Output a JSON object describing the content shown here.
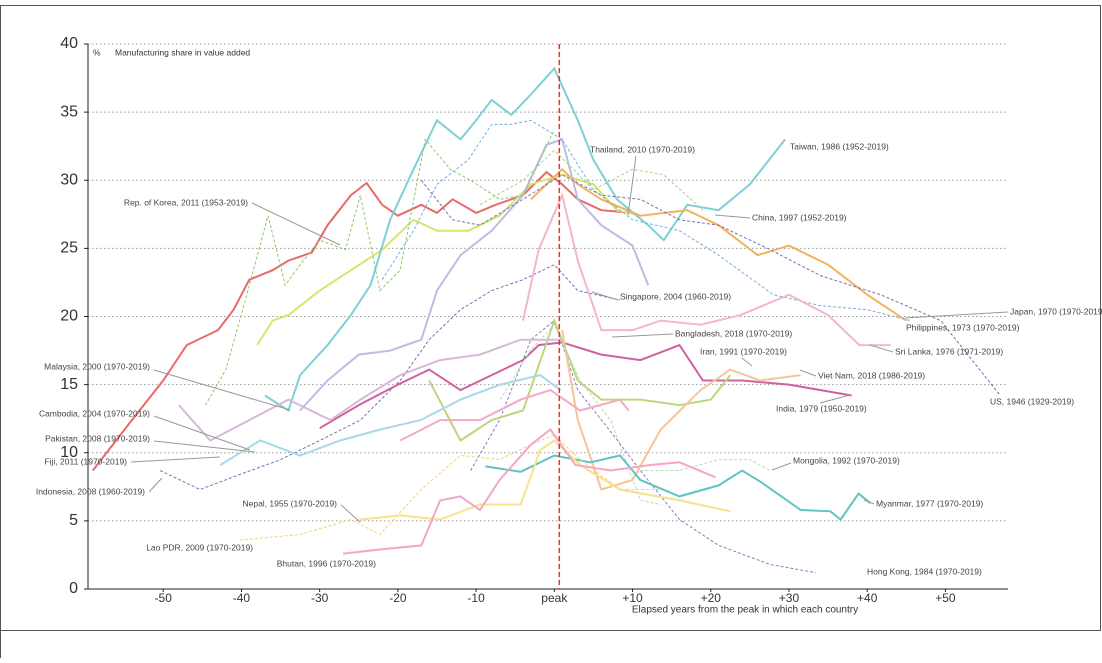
{
  "chart_data": {
    "type": "line",
    "y_unit": "%",
    "ylabel": "Manufacturing share in value added",
    "xlabel": "Elapsed years from the peak in which each country",
    "xlim": [
      -60,
      58
    ],
    "ylim": [
      0,
      40
    ],
    "xticks": [
      -50,
      -40,
      -30,
      -20,
      -10,
      {
        "value": 0,
        "label": "peak"
      },
      {
        "value": 10,
        "label": "+10"
      },
      {
        "value": 20,
        "label": "+20"
      },
      {
        "value": 30,
        "label": "+30"
      },
      {
        "value": 40,
        "label": "+40"
      },
      {
        "value": 50,
        "label": "+50"
      }
    ],
    "yticks": [
      0,
      5,
      10,
      15,
      20,
      25,
      30,
      35,
      40
    ],
    "grid": true,
    "peak_line": 0,
    "peak_line_color": "#e0302e",
    "series": [
      {
        "name": "Rep. of Korea, 2011 (1953-2019)",
        "color": "#e8696b",
        "dash": false,
        "x": [
          -59,
          -54,
          -50,
          -47,
          -43,
          -41,
          -39,
          -36,
          -34,
          -31,
          -29,
          -26,
          -24,
          -22,
          -20,
          -17,
          -15,
          -13,
          -10,
          -7.5,
          -4,
          -1,
          1,
          3,
          6,
          10
        ],
        "values": [
          8.7,
          12.4,
          15.3,
          17.9,
          19,
          20.5,
          22.7,
          23.4,
          24.1,
          24.7,
          26.7,
          28.9,
          29.8,
          28.2,
          27.4,
          28.2,
          27.6,
          28.6,
          27.6,
          28.2,
          28.9,
          30.6,
          29.7,
          28.6,
          27.8,
          27.6
        ]
      },
      {
        "name": "Thailand, 2010 (1970-2019)",
        "color": "#d6e56e",
        "dash": false,
        "x": [
          -38,
          -36,
          -34,
          -30,
          -26,
          -22,
          -18,
          -15,
          -11,
          -7,
          -3,
          1,
          5,
          8,
          11
        ],
        "values": [
          17.9,
          19.7,
          20.1,
          21.9,
          23.4,
          24.9,
          27.1,
          26.3,
          26.3,
          27.4,
          29.7,
          30.4,
          29.7,
          27.8,
          27.4
        ]
      },
      {
        "name": "Taiwan, 1986 (1952-2019)",
        "color": "#7fcfd6",
        "dash": false,
        "x": [
          -37,
          -34,
          -32.5,
          -29,
          -26,
          -23.5,
          -21,
          -18,
          -15,
          -12,
          -10,
          -8,
          -5.5,
          -3,
          0,
          3,
          5,
          8,
          12,
          14,
          17,
          21,
          25,
          29.5
        ],
        "values": [
          14.2,
          13.1,
          15.7,
          17.9,
          20.1,
          22.3,
          27.1,
          30.8,
          34.4,
          33,
          34.4,
          35.9,
          34.8,
          36.3,
          38.2,
          34.4,
          31.5,
          28.6,
          26.7,
          25.6,
          28.2,
          27.8,
          29.7,
          33
        ]
      },
      {
        "name": "Japan, 1970 (1970-2019)",
        "color": "#f2b35c",
        "dash": false,
        "x": [
          -3,
          1,
          3,
          6,
          11,
          17,
          21,
          26,
          30,
          35,
          40,
          45
        ],
        "values": [
          28.6,
          30.8,
          29.7,
          28.6,
          27.4,
          27.8,
          26.7,
          24.5,
          25.2,
          23.8,
          21.6,
          19.7
        ]
      },
      {
        "name": "Singapore, 2004 (1960-2019)",
        "color": "#b9bee2",
        "dash": false,
        "x": [
          -32.5,
          -29,
          -25,
          -21,
          -17,
          -15,
          -12,
          -8,
          -4,
          -1,
          1,
          3,
          6,
          10,
          12
        ],
        "values": [
          13.1,
          15.3,
          17.2,
          17.5,
          18.3,
          21.9,
          24.5,
          26.3,
          28.9,
          32.6,
          33,
          28.6,
          26.7,
          25.2,
          22.3
        ]
      },
      {
        "name": "Philippines, 1973 (1970-2019)",
        "color": "#7aaedc",
        "dash": true,
        "x": [
          -22,
          -18,
          -15,
          -11,
          -8,
          -5.5,
          -3,
          1,
          5,
          10,
          16,
          21,
          28,
          34,
          40,
          45.5
        ],
        "values": [
          22.7,
          26.3,
          29.7,
          31.5,
          34.1,
          34.1,
          34.4,
          33,
          29.3,
          27.1,
          26.3,
          24.5,
          21.6,
          20.8,
          20.5,
          19.7
        ]
      },
      {
        "name": "China, 1997 (1952-2019)",
        "color": "#a9d18e",
        "dash": true,
        "x": [
          -9.5,
          -4,
          0,
          5,
          10,
          14,
          19
        ],
        "values": [
          28.2,
          30,
          32.2,
          29.3,
          30.8,
          30.4,
          27.8
        ]
      },
      {
        "name": "Malaysia, 2000 (1970-2019)",
        "color": "#8dc86a",
        "dash": true,
        "x": [
          -44.6,
          -42,
          -39.5,
          -36.6,
          -34.4,
          -32.5,
          -30,
          -26.7,
          -24.8,
          -22.3,
          -19.7,
          -16.5,
          -13.3,
          -10.7,
          -7,
          -4,
          0
        ],
        "values": [
          13.5,
          16.1,
          21.2,
          27.4,
          22.3,
          23.8,
          25.6,
          24.9,
          28.9,
          21.9,
          23.4,
          33,
          30.8,
          30,
          28.6,
          28.9,
          33.7
        ]
      },
      {
        "name": "US, 1946 (1929-2019)",
        "color": "#7b6fb5",
        "dash": true,
        "x": [
          -17,
          -13,
          -9.5,
          -4,
          1,
          6,
          11,
          16,
          21,
          27.6,
          34,
          41.7,
          49.4,
          57
        ],
        "values": [
          30,
          27.1,
          26.7,
          28.6,
          30.4,
          28.9,
          28.6,
          27.1,
          26.7,
          24.9,
          23,
          21.6,
          19.7,
          14.2
        ]
      },
      {
        "name": "Indonesia, 2008 (1960-2019)",
        "color": "#7b6fb5",
        "dash": true,
        "x": [
          -50.4,
          -45.3,
          -40.2,
          -35,
          -30,
          -24.8,
          -19.7,
          -16,
          -12,
          -8,
          -4,
          0,
          3,
          8.4
        ],
        "values": [
          8.7,
          7.3,
          8.4,
          9.5,
          10.9,
          12.4,
          15.3,
          18.3,
          20.5,
          21.9,
          22.7,
          23.8,
          21.9,
          21.2
        ]
      },
      {
        "name": "Hong Kong, 1984 (1970-2019)",
        "color": "#8a7cc0",
        "dash": true,
        "x": [
          -10.7,
          -7,
          -3,
          0,
          3,
          7,
          11,
          16,
          21,
          27.6,
          33.4
        ],
        "values": [
          8.7,
          12.4,
          18.3,
          19.7,
          14.6,
          11.7,
          8.7,
          5.1,
          3.2,
          1.8,
          1.2
        ]
      },
      {
        "name": "Sri Lanka, 1976 (1971-2019)",
        "color": "#f4b6cc",
        "dash": false,
        "x": [
          -4,
          -2,
          1,
          3,
          6,
          10,
          13.6,
          18.7,
          23.8,
          30,
          35,
          39,
          43
        ],
        "values": [
          19.7,
          24.9,
          28.9,
          24.1,
          19,
          19,
          19.7,
          19.4,
          20.1,
          21.6,
          20.1,
          17.9,
          17.9
        ]
      },
      {
        "name": "Bangladesh, 2018 (1970-2019)",
        "color": "#d0609f",
        "dash": false,
        "x": [
          -30,
          -25,
          -20,
          -16,
          -12,
          -8,
          -4,
          -2,
          1,
          6,
          11,
          16,
          19,
          24,
          30,
          38
        ],
        "values": [
          11.8,
          13.5,
          15,
          16.1,
          14.6,
          15.7,
          16.8,
          17.9,
          18.1,
          17.2,
          16.8,
          17.9,
          15.3,
          15.3,
          15,
          14.2
        ]
      },
      {
        "name": "Iran, 1991 (1970-2019)",
        "color": "#bcd67d",
        "dash": false,
        "x": [
          -16,
          -12,
          -8,
          -4,
          0,
          3,
          6,
          11,
          16,
          20,
          22.5
        ],
        "values": [
          15.3,
          10.9,
          12.4,
          13.1,
          19.7,
          15.3,
          13.9,
          13.9,
          13.5,
          13.9,
          15.7
        ]
      },
      {
        "name": "Viet Nam, 2018 (1986-2019)",
        "color": "#f5c49c",
        "dash": false,
        "x": [
          1,
          3,
          6,
          10,
          13.6,
          18.7,
          22.5,
          26.3,
          31.5
        ],
        "values": [
          19,
          12.4,
          7.3,
          8,
          11.7,
          14.6,
          16.1,
          15.3,
          15.7
        ]
      },
      {
        "name": "India, 1979 (1950-2019)",
        "color": "#f2a9c6",
        "dash": false,
        "x": [
          -19.7,
          -14.6,
          -9.5,
          -4.3,
          -0.5,
          3.3,
          8.4,
          9.5
        ],
        "values": [
          10.9,
          12.4,
          12.4,
          13.9,
          14.6,
          13.1,
          13.9,
          13.1
        ]
      },
      {
        "name": "Fiji, 2011 (1970-2019)",
        "color": "#a8d8ea",
        "dash": false,
        "x": [
          -42.7,
          -37.6,
          -32.5,
          -27.4,
          -22.3,
          -17.1,
          -12,
          -6.9,
          -1.8,
          0.8
        ],
        "values": [
          9.1,
          10.9,
          9.8,
          10.9,
          11.7,
          12.4,
          13.9,
          15,
          15.7,
          14.6
        ]
      },
      {
        "name": "Pakistan, 2008 (1970-2019)",
        "color": "#d6b8d8",
        "dash": false,
        "x": [
          -48,
          -44,
          -39,
          -34,
          -28.6,
          -24.8,
          -19.7,
          -14.6,
          -9.5,
          -4.3,
          0.8
        ],
        "values": [
          13.5,
          10.9,
          12.4,
          13.9,
          12.4,
          13.9,
          15.7,
          16.8,
          17.2,
          18.3,
          18.3
        ]
      },
      {
        "name": "Cambodia, 2004 (1970-2019)",
        "color": "#b5dcb0",
        "dash": true,
        "x": [
          -6.9,
          -3.1,
          0,
          3.3,
          7.2,
          11,
          13.6
        ],
        "values": [
          13.9,
          17.5,
          19.4,
          15.3,
          12.4,
          6.5,
          6.2
        ]
      },
      {
        "name": "Mongolia, 1992 (1970-2019)",
        "color": "#b5dcb0",
        "dash": true,
        "x": [
          11,
          16,
          21,
          25,
          27.6
        ],
        "values": [
          8.7,
          8.7,
          9.5,
          9.5,
          8.7
        ]
      },
      {
        "name": "Myanmar, 1977 (1970-2019)",
        "color": "#5fc4c4",
        "dash": false,
        "x": [
          -8.8,
          -4.3,
          0,
          4.6,
          8.4,
          11,
          16,
          21,
          24,
          26.3,
          31.5,
          35.3,
          36.6,
          38.9,
          40.4
        ],
        "values": [
          9,
          8.6,
          9.8,
          9.3,
          9.8,
          8,
          6.8,
          7.6,
          8.7,
          7.9,
          5.8,
          5.7,
          5.1,
          7,
          6.3
        ]
      },
      {
        "name": "Nepal, 1955 (1970-2019)",
        "color": "#f5d36a",
        "dash": true,
        "x": [
          -40.2,
          -32.5,
          -26,
          -22.3,
          -17,
          -12,
          -7,
          -3,
          0,
          3.3,
          8.4,
          13.6
        ],
        "values": [
          3.6,
          4,
          5.1,
          4,
          7.3,
          9.8,
          9.5,
          10.6,
          11.3,
          9.5,
          7.3,
          7.3
        ]
      },
      {
        "name": "Lao PDR, 2009 (1970-2019)",
        "color": "#f9e08a",
        "dash": false,
        "x": [
          -24.8,
          -19.7,
          -14.6,
          -9.5,
          -4.3,
          -1.8,
          0,
          3.3,
          8.4,
          16,
          22.5
        ],
        "values": [
          5.1,
          5.4,
          5.1,
          6.2,
          6.2,
          10.2,
          10.9,
          9.1,
          7.3,
          6.5,
          5.7
        ]
      },
      {
        "name": "Bhutan, 1996 (1970-2019)",
        "color": "#f4a6c4",
        "dash": false,
        "x": [
          -27,
          -22.3,
          -17,
          -14.6,
          -12,
          -9.5,
          -7,
          -3,
          -0.5,
          2.7,
          7.2,
          12.3,
          16,
          20.6
        ],
        "values": [
          2.6,
          2.9,
          3.2,
          6.5,
          6.8,
          5.8,
          8,
          10.6,
          11.7,
          9.1,
          8.7,
          9.1,
          9.3,
          8.2
        ]
      }
    ]
  }
}
